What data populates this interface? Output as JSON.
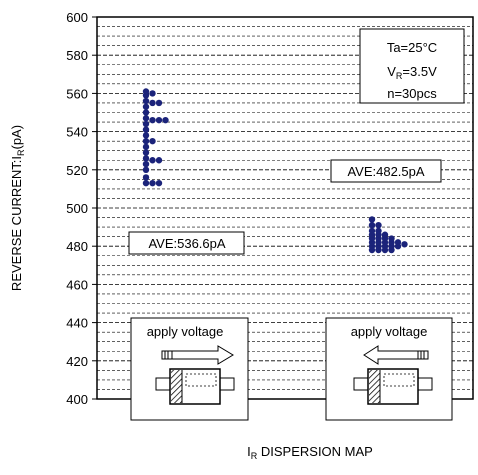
{
  "chart_data": {
    "type": "scatter",
    "title": "",
    "xlabel": "I_R DISPERSION MAP",
    "xlabel_main": "I",
    "xlabel_sub": "R",
    "xlabel_rest": " DISPERSION MAP",
    "ylabel": "REVERSE CURRENT:I_R(pA)",
    "ylabel_main": "REVERSE CURRENT:I",
    "ylabel_sub": "R",
    "ylabel_rest": "(pA)",
    "ylim": [
      400,
      600
    ],
    "y_ticks": [
      400,
      420,
      440,
      460,
      480,
      500,
      520,
      540,
      560,
      580,
      600
    ],
    "grid": true,
    "grid_minor_step": 5,
    "point_color": "#1b237a",
    "conditions": {
      "ta": "Ta=25°C",
      "vr_main": "V",
      "vr_sub": "R",
      "vr_rest": "=3.5V",
      "n": "n=30pcs"
    },
    "series": [
      {
        "average_label": "AVE:536.6pA",
        "caption": "apply voltage",
        "arrow_direction": "right",
        "points": [
          {
            "column": 0,
            "values": [
              513,
              516,
              520,
              523,
              526,
              529,
              532,
              535,
              538,
              541,
              544,
              547,
              550,
              553,
              556,
              559,
              561
            ]
          },
          {
            "column": 1,
            "values": [
              513,
              525,
              535,
              546,
              555,
              560
            ]
          },
          {
            "column": 2,
            "values": [
              513,
              525,
              546,
              555
            ]
          },
          {
            "column": 3,
            "values": [
              546
            ]
          }
        ]
      },
      {
        "average_label": "AVE:482.5pA",
        "caption": "apply voltage",
        "arrow_direction": "left",
        "points": [
          {
            "column": 0,
            "values": [
              478,
              480,
              482,
              484,
              486,
              488,
              491,
              494
            ]
          },
          {
            "column": 1,
            "values": [
              478,
              480,
              482,
              484,
              486,
              488,
              491
            ]
          },
          {
            "column": 2,
            "values": [
              478,
              480,
              482,
              484,
              486
            ]
          },
          {
            "column": 3,
            "values": [
              478,
              480,
              482,
              484
            ]
          },
          {
            "column": 4,
            "values": [
              480,
              482
            ]
          },
          {
            "column": 5,
            "values": [
              481
            ]
          }
        ]
      }
    ]
  }
}
